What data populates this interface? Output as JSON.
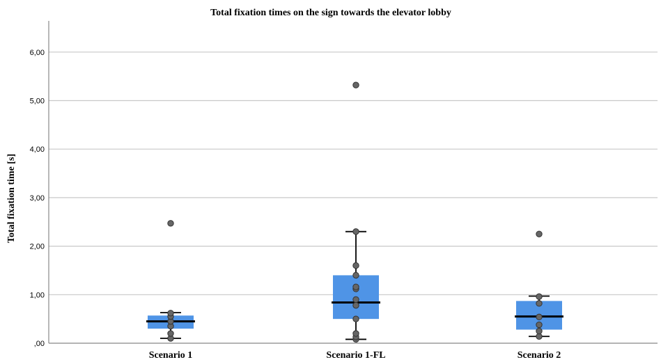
{
  "chart_data": {
    "type": "boxplot",
    "title": "Total fixation times on the sign towards the elevator lobby",
    "xlabel": "",
    "ylabel": "Total fixation time [s]",
    "ylim": [
      0,
      6.6
    ],
    "yticks": [
      0,
      1,
      2,
      3,
      4,
      5,
      6
    ],
    "ytick_labels": [
      ",00",
      "1,00",
      "2,00",
      "3,00",
      "4,00",
      "5,00",
      "6,00"
    ],
    "grid": "horizontal",
    "box_color": "#4f94e6",
    "point_color": "#666666",
    "categories": [
      "Scenario 1",
      "Scenario 1-FL",
      "Scenario 2"
    ],
    "boxes": [
      {
        "category": "Scenario 1",
        "whisker_low": 0.1,
        "q1": 0.3,
        "median": 0.45,
        "q3": 0.57,
        "whisker_high": 0.63,
        "points": [
          0.1,
          0.2,
          0.35,
          0.45,
          0.55,
          0.62,
          2.47
        ]
      },
      {
        "category": "Scenario 1-FL",
        "whisker_low": 0.08,
        "q1": 0.5,
        "median": 0.84,
        "q3": 1.4,
        "whisker_high": 2.3,
        "points": [
          0.08,
          0.13,
          0.2,
          0.5,
          0.78,
          0.9,
          1.12,
          1.16,
          1.4,
          1.6,
          2.3,
          5.32
        ]
      },
      {
        "category": "Scenario 2",
        "whisker_low": 0.14,
        "q1": 0.28,
        "median": 0.55,
        "q3": 0.87,
        "whisker_high": 0.97,
        "points": [
          0.14,
          0.25,
          0.38,
          0.54,
          0.82,
          0.96,
          2.25
        ]
      }
    ]
  }
}
